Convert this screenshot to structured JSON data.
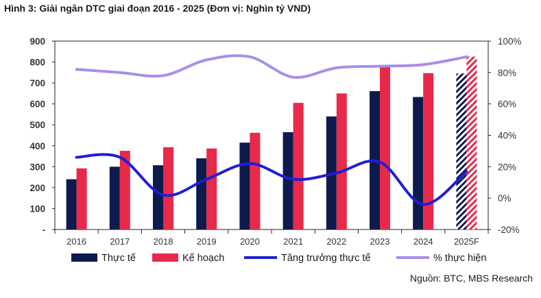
{
  "title": "Hình 3: Giải ngân DTC giai đoạn 2016 - 2025 (Đơn vị: Nghìn tỷ VND)",
  "source": "Nguồn: BTC, MBS Research",
  "chart_data": {
    "type": "bar",
    "categories": [
      "2016",
      "2017",
      "2018",
      "2019",
      "2020",
      "2021",
      "2022",
      "2023",
      "2024",
      "2025F"
    ],
    "series": [
      {
        "name": "Thực tế",
        "kind": "bar",
        "axis": "left",
        "color": "#0d1b4c",
        "values": [
          240,
          300,
          307,
          340,
          415,
          465,
          540,
          661,
          633,
          745
        ]
      },
      {
        "name": "Kế hoạch",
        "kind": "bar",
        "axis": "left",
        "color": "#e8294a",
        "values": [
          292,
          376,
          393,
          387,
          462,
          605,
          650,
          782,
          747,
          826
        ]
      },
      {
        "name": "Tăng trưởng thực tế",
        "kind": "line",
        "axis": "right",
        "color": "#1e1ed6",
        "values": [
          26,
          26,
          2,
          12,
          22,
          12,
          16,
          23,
          -4,
          17
        ]
      },
      {
        "name": "% thực hiện",
        "kind": "line",
        "axis": "right",
        "color": "#a98ee8",
        "values": [
          82,
          80,
          78,
          88,
          90,
          77,
          83,
          84,
          85,
          90
        ]
      }
    ],
    "forecast_category": "2025F",
    "forecast_pattern": "hatched",
    "y_left": {
      "ticks": [
        "-",
        "100",
        "200",
        "300",
        "400",
        "500",
        "600",
        "700",
        "800",
        "900"
      ],
      "ylim": [
        0,
        900
      ]
    },
    "y_right": {
      "ticks": [
        "-20%",
        "0%",
        "20%",
        "40%",
        "60%",
        "80%",
        "100%"
      ],
      "ylim": [
        -20,
        100
      ]
    },
    "legend": {
      "position": "bottom"
    },
    "grid": false
  }
}
